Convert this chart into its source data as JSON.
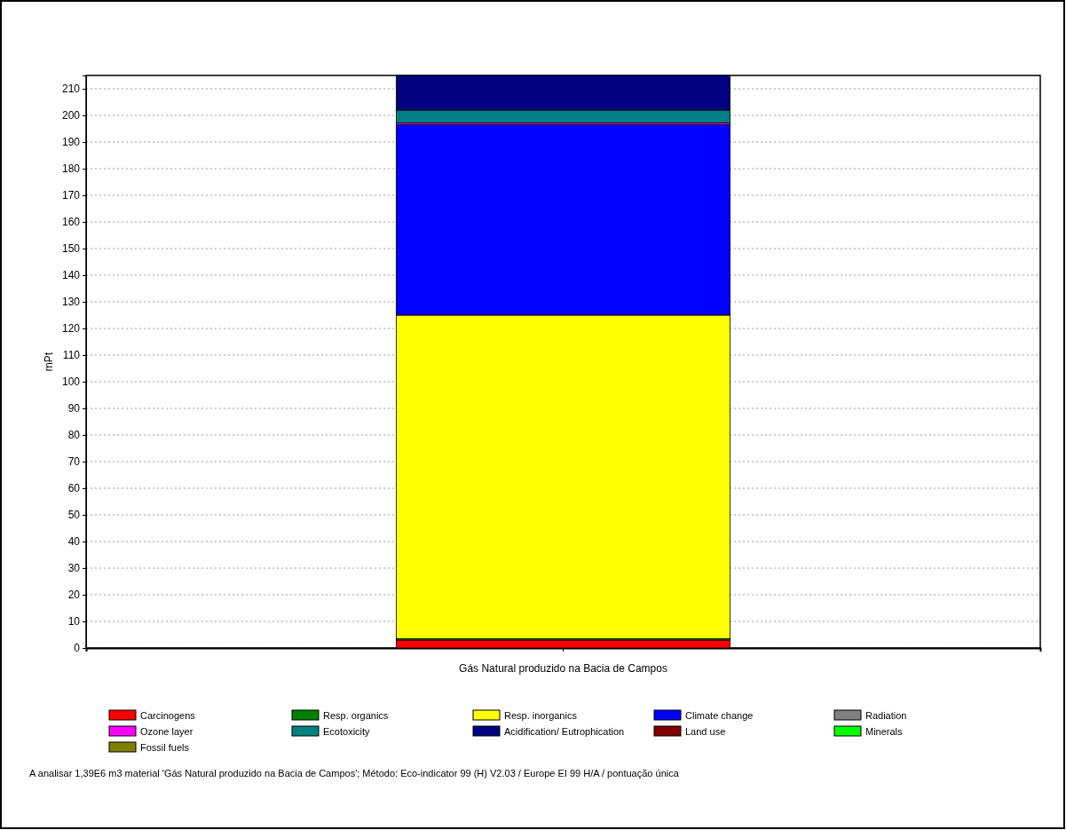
{
  "chart_data": {
    "type": "bar",
    "stacked": true,
    "ylabel": "mPt",
    "categories": [
      "Gás Natural produzido na Bacia de Campos"
    ],
    "ylim": [
      0,
      215
    ],
    "yticks": [
      0,
      10,
      20,
      30,
      40,
      50,
      60,
      70,
      80,
      90,
      100,
      110,
      120,
      130,
      140,
      150,
      160,
      170,
      180,
      190,
      200,
      210
    ],
    "grid": "y",
    "legend": "bottom",
    "series": [
      {
        "name": "Carcinogens",
        "color": "#ff0000",
        "values": [
          3
        ]
      },
      {
        "name": "Resp. organics",
        "color": "#008000",
        "values": [
          0.5
        ]
      },
      {
        "name": "Resp. inorganics",
        "color": "#ffff00",
        "values": [
          121.5
        ]
      },
      {
        "name": "Climate change",
        "color": "#0000ff",
        "values": [
          71.5
        ]
      },
      {
        "name": "Radiation",
        "color": "#808080",
        "values": [
          0
        ]
      },
      {
        "name": "Ozone layer",
        "color": "#ff00ff",
        "values": [
          0.7
        ]
      },
      {
        "name": "Ecotoxicity",
        "color": "#008080",
        "values": [
          4.8
        ]
      },
      {
        "name": "Acidification/ Eutrophication",
        "color": "#000080",
        "values": [
          13
        ]
      },
      {
        "name": "Land use",
        "color": "#800000",
        "values": [
          0
        ]
      },
      {
        "name": "Minerals",
        "color": "#00ff00",
        "values": [
          0
        ]
      },
      {
        "name": "Fossil fuels",
        "color": "#808000",
        "values": [
          0
        ]
      }
    ],
    "annotations": [
      "A analisar 1,39E6 m3 material 'Gás Natural produzido na Bacia de Campos';  Método: Eco-indicator 99 (H) V2.03 / Europe EI 99 H/A / pontuação única"
    ]
  }
}
